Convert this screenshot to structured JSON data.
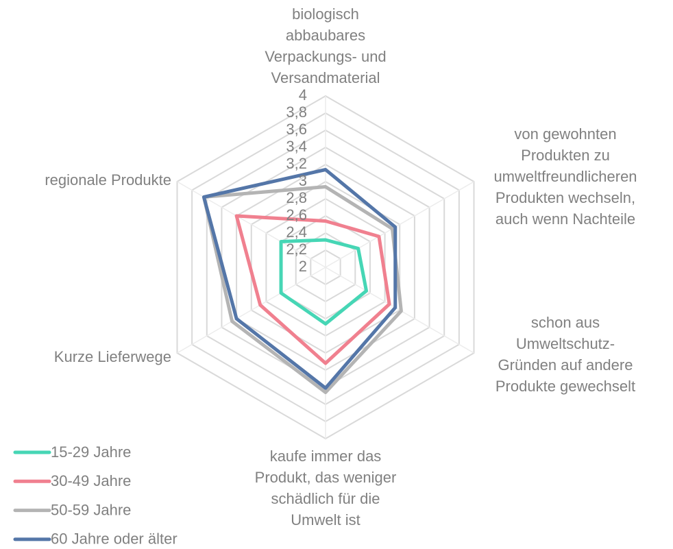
{
  "chart_data": {
    "type": "radar",
    "categories": [
      "biologisch\nabbaubares\nVerpackungs- und\nVersandmaterial",
      "von gewohnten\nProdukten zu\numweltfreundlicheren\nProdukten wechseln,\nauch wenn Nachteile",
      "schon aus\nUmweltschutz-\nGründen auf andere\nProdukte gewechselt",
      "kaufe immer das\nProdukt, das weniger\nschädlich für die\nUmwelt ist",
      "Kurze Lieferwege",
      "regionale Produkte"
    ],
    "series": [
      {
        "name": "15-29 Jahre",
        "color": "#46d6b5",
        "values": [
          2.32,
          2.44,
          2.55,
          2.66,
          2.6,
          2.6
        ]
      },
      {
        "name": "30-49 Jahre",
        "color": "#f0808f",
        "values": [
          2.54,
          2.72,
          2.86,
          3.12,
          2.88,
          3.2
        ]
      },
      {
        "name": "50-59 Jahre",
        "color": "#b4b4b4",
        "values": [
          2.94,
          2.9,
          3.02,
          3.46,
          3.26,
          3.64
        ]
      },
      {
        "name": "60 Jahre oder älter",
        "color": "#5476a8",
        "values": [
          3.14,
          2.94,
          2.94,
          3.41,
          3.2,
          3.64
        ]
      }
    ],
    "rlim": [
      2,
      4
    ],
    "rticks": [
      2,
      {
        "value": 2.2,
        "label": "2,2"
      },
      {
        "value": 2.4,
        "label": "2,4"
      },
      {
        "value": 2.6,
        "label": "2,6"
      },
      {
        "value": 2.8,
        "label": "2,8"
      },
      3,
      {
        "value": 3.2,
        "label": "3,2"
      },
      {
        "value": 3.4,
        "label": "3,4"
      },
      {
        "value": 3.6,
        "label": "3,6"
      },
      {
        "value": 3.8,
        "label": "3,8"
      },
      4
    ],
    "grid": true,
    "legend": "bottom-left"
  }
}
